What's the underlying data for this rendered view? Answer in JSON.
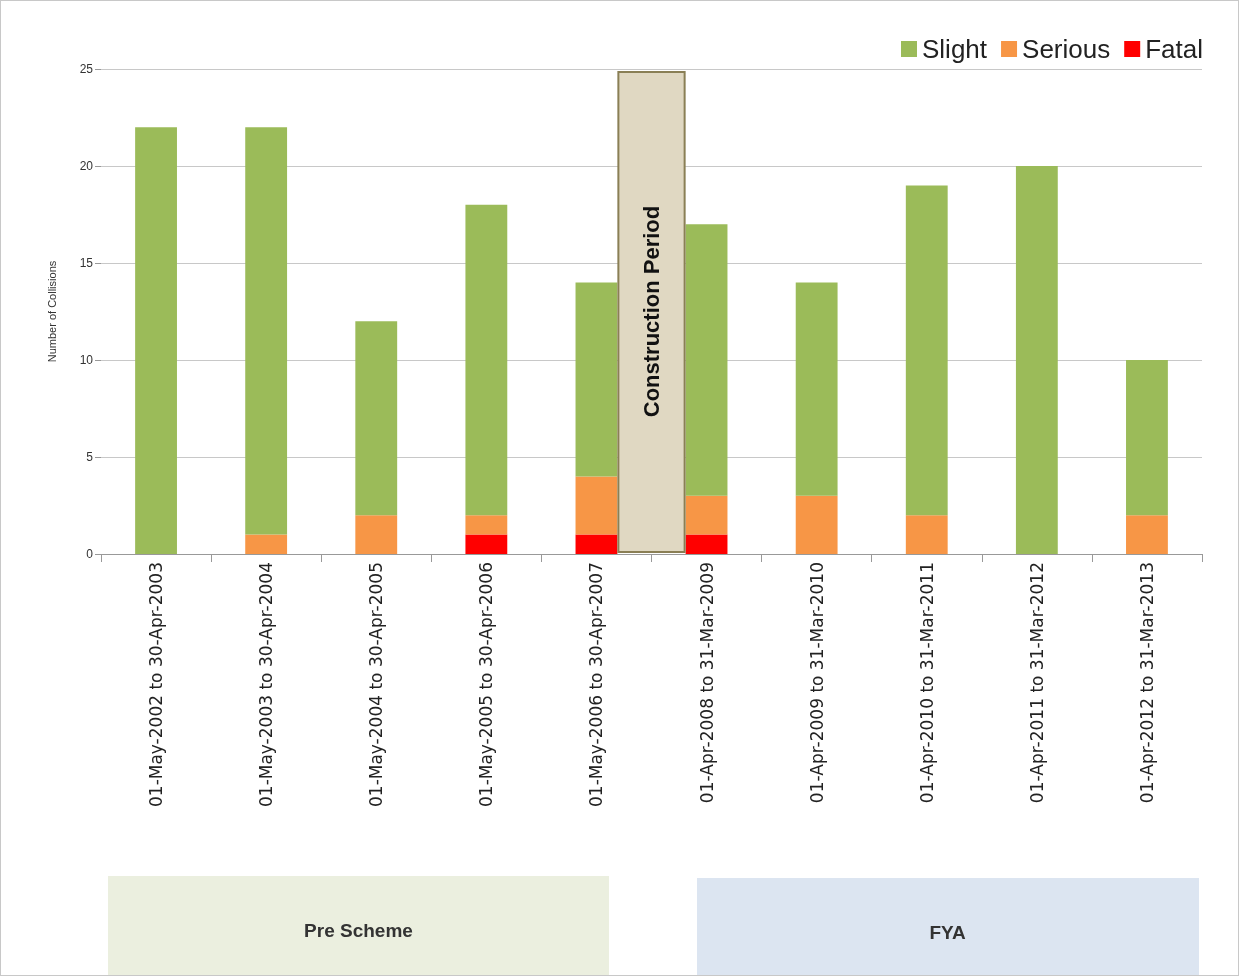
{
  "chart_data": {
    "type": "bar",
    "stacked": true,
    "ylabel": "Number of Collisions",
    "categories": [
      "01-May-2002 to 30-Apr-2003",
      "01-May-2003 to 30-Apr-2004",
      "01-May-2004 to 30-Apr-2005",
      "01-May-2005 to 30-Apr-2006",
      "01-May-2006 to 30-Apr-2007",
      "01-Apr-2008 to 31-Mar-2009",
      "01-Apr-2009 to 31-Mar-2010",
      "01-Apr-2010 to 31-Mar-2011",
      "01-Apr-2011 to 31-Mar-2012",
      "01-Apr-2012 to 31-Mar-2013"
    ],
    "series": [
      {
        "name": "Fatal",
        "color": "#ff0000",
        "values": [
          0,
          0,
          0,
          1,
          1,
          1,
          0,
          0,
          0,
          0
        ]
      },
      {
        "name": "Serious",
        "color": "#f79646",
        "values": [
          0,
          1,
          2,
          1,
          3,
          2,
          3,
          2,
          0,
          2
        ]
      },
      {
        "name": "Slight",
        "color": "#9bbb59",
        "values": [
          22,
          21,
          10,
          16,
          10,
          14,
          11,
          17,
          20,
          8
        ]
      }
    ],
    "ylim": [
      0,
      25
    ],
    "yticks": [
      0,
      5,
      10,
      15,
      20,
      25
    ],
    "grid": "y",
    "legend": "top right",
    "bands": [
      {
        "axis": "x",
        "from": "01-May-2006 to 30-Apr-2007",
        "to": "01-Apr-2008 to 31-Mar-2009",
        "label": "Construction Period",
        "color": "#e0d8c2"
      }
    ],
    "annotations": [
      "Pre Scheme",
      "FYA"
    ]
  }
}
